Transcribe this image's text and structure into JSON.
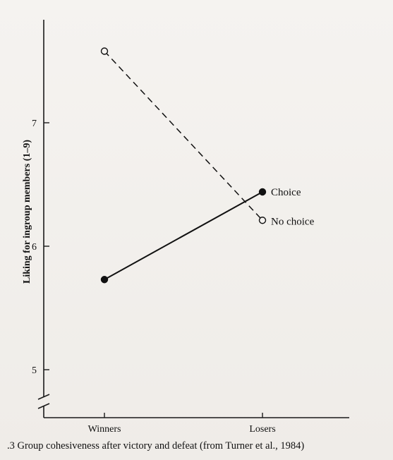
{
  "chart_data": {
    "type": "line",
    "categories": [
      "Winners",
      "Losers"
    ],
    "ylabel": "Liking for ingroup members (1–9)",
    "y_axis_break": true,
    "ylim": [
      4.9,
      7.8
    ],
    "yticks": [
      5,
      6,
      7
    ],
    "series": [
      {
        "name": "Choice",
        "values": [
          5.73,
          6.44
        ],
        "marker": "filled-circle",
        "line_style": "solid",
        "color": "#111111"
      },
      {
        "name": "No choice",
        "values": [
          7.58,
          6.21
        ],
        "marker": "open-circle",
        "line_style": "dashed",
        "color": "#111111"
      }
    ],
    "legend_placement": "inline-right",
    "grid": false
  },
  "caption": ".3 Group cohesiveness after victory and defeat (from Turner et al., 1984)"
}
